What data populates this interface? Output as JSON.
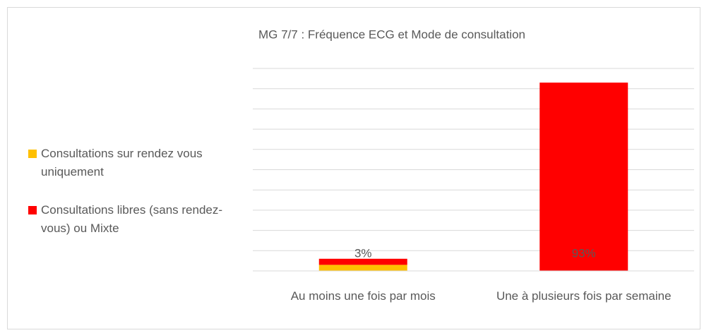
{
  "chart_data": {
    "type": "bar",
    "stacked": true,
    "title": "MG 7/7 : Fréquence ECG et Mode de consultation",
    "categories": [
      "Au moins une fois par mois",
      "Une à plusieurs fois par semaine"
    ],
    "series": [
      {
        "name": "Consultations sur rendez vous uniquement",
        "color": "#ffc000",
        "values": [
          3,
          0
        ],
        "value_labels": [
          "3%",
          null
        ]
      },
      {
        "name": "Consultations libres (sans rendez-vous) ou Mixte",
        "color": "#ff0000",
        "values": [
          3,
          93
        ],
        "value_labels": [
          null,
          "93%"
        ]
      }
    ],
    "ylim": [
      0,
      100
    ],
    "yticks": [
      0,
      10,
      20,
      30,
      40,
      50,
      60,
      70,
      80,
      90,
      100
    ],
    "grid": true,
    "legend": "left"
  }
}
